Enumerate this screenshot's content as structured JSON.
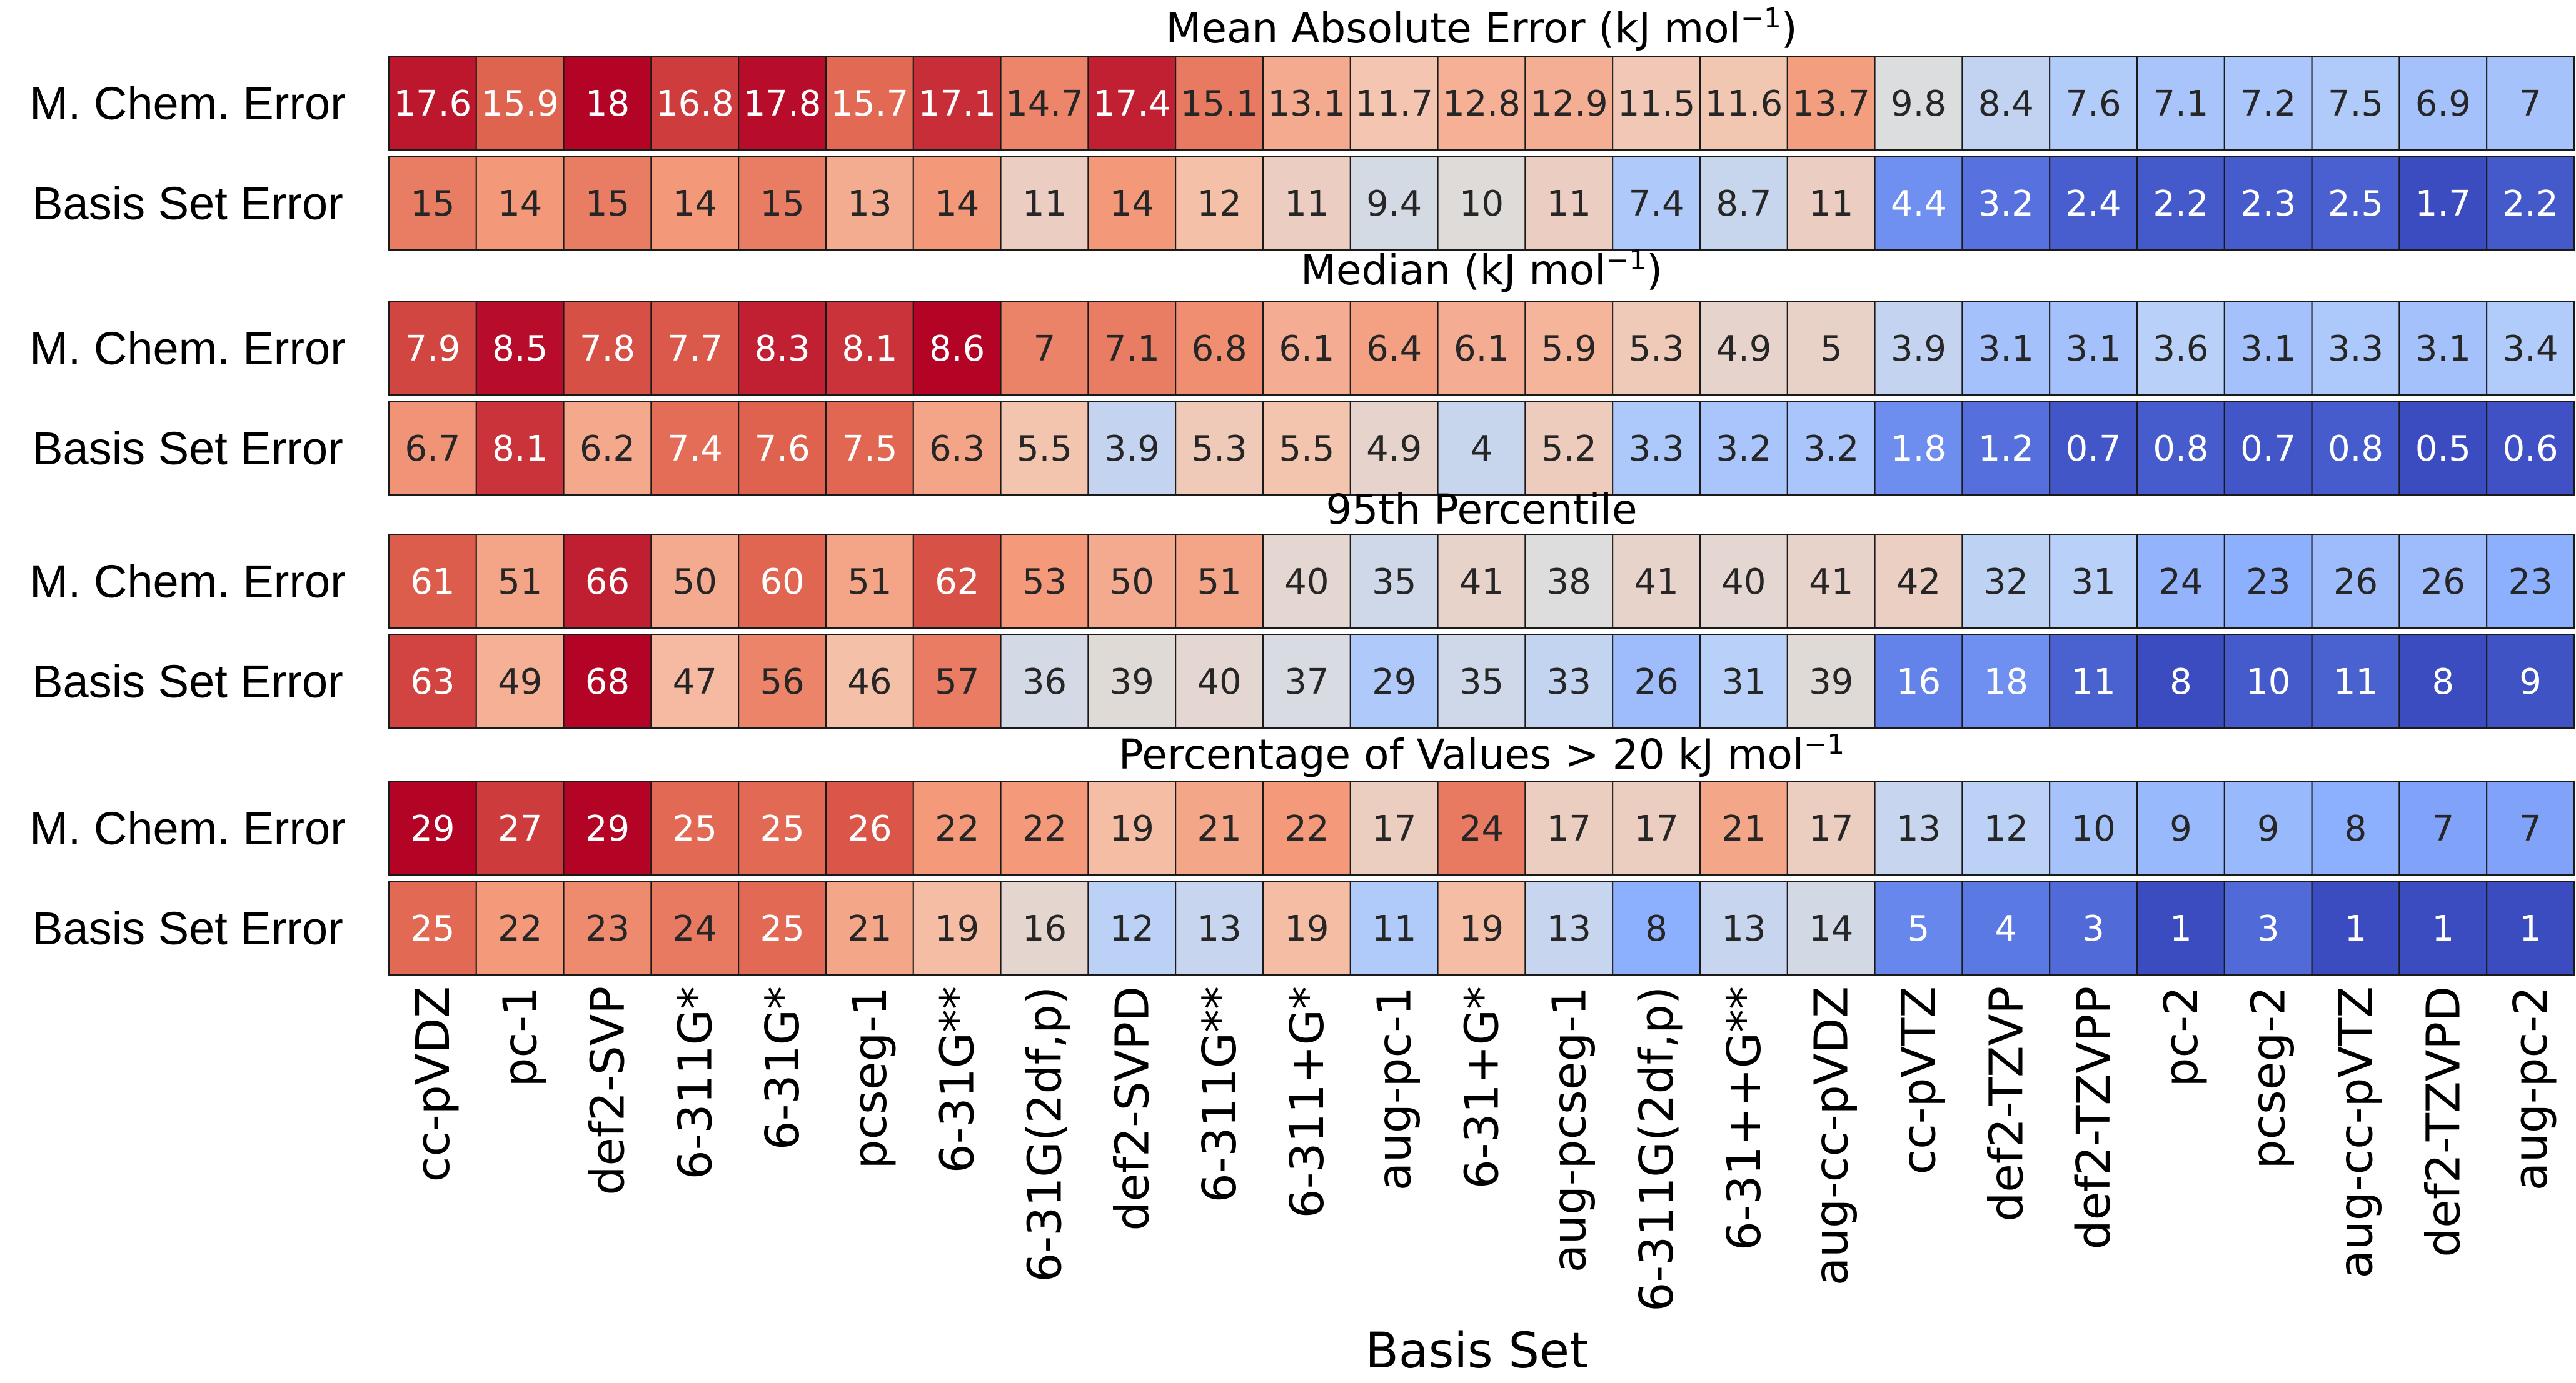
{
  "chart_data": {
    "type": "heatmap",
    "xlabel": "Basis Set",
    "colormap": "coolwarm",
    "categories": [
      "cc-pVDZ",
      "pc-1",
      "def2-SVP",
      "6-311G*",
      "6-31G*",
      "pcseg-1",
      "6-31G**",
      "6-31G(2df,p)",
      "def2-SVPD",
      "6-311G**",
      "6-311+G*",
      "aug-pc-1",
      "6-31+G*",
      "aug-pcseg-1",
      "6-311G(2df,p)",
      "6-31++G**",
      "aug-cc-pVDZ",
      "cc-pVTZ",
      "def2-TZVP",
      "def2-TZVPP",
      "pc-2",
      "pcseg-2",
      "aug-cc-pVTZ",
      "def2-TZVPD",
      "aug-pc-2"
    ],
    "panels": [
      {
        "title": "Mean Absolute Error (kJ mol",
        "title_sup": "−1",
        "title_tail": ")",
        "rows": [
          {
            "label": "M. Chem. Error",
            "values": [
              "17.6",
              "15.9",
              "18",
              "16.8",
              "17.8",
              "15.7",
              "17.1",
              "14.7",
              "17.4",
              "15.1",
              "13.1",
              "11.7",
              "12.8",
              "12.9",
              "11.5",
              "11.6",
              "13.7",
              "9.8",
              "8.4",
              "7.6",
              "7.1",
              "7.2",
              "7.5",
              "6.9",
              "7"
            ]
          },
          {
            "label": "Basis Set Error",
            "values": [
              "15",
              "14",
              "15",
              "14",
              "15",
              "13",
              "14",
              "11",
              "14",
              "12",
              "11",
              "9.4",
              "10",
              "11",
              "7.4",
              "8.7",
              "11",
              "4.4",
              "3.2",
              "2.4",
              "2.2",
              "2.3",
              "2.5",
              "1.7",
              "2.2"
            ]
          }
        ]
      },
      {
        "title": "Median (kJ mol",
        "title_sup": "−1",
        "title_tail": ")",
        "rows": [
          {
            "label": "M. Chem. Error",
            "values": [
              "7.9",
              "8.5",
              "7.8",
              "7.7",
              "8.3",
              "8.1",
              "8.6",
              "7",
              "7.1",
              "6.8",
              "6.1",
              "6.4",
              "6.1",
              "5.9",
              "5.3",
              "4.9",
              "5",
              "3.9",
              "3.1",
              "3.1",
              "3.6",
              "3.1",
              "3.3",
              "3.1",
              "3.4"
            ]
          },
          {
            "label": "Basis Set Error",
            "values": [
              "6.7",
              "8.1",
              "6.2",
              "7.4",
              "7.6",
              "7.5",
              "6.3",
              "5.5",
              "3.9",
              "5.3",
              "5.5",
              "4.9",
              "4",
              "5.2",
              "3.3",
              "3.2",
              "3.2",
              "1.8",
              "1.2",
              "0.7",
              "0.8",
              "0.7",
              "0.8",
              "0.5",
              "0.6"
            ]
          }
        ]
      },
      {
        "title": "95th Percentile",
        "title_sup": "",
        "title_tail": "",
        "rows": [
          {
            "label": "M. Chem. Error",
            "values": [
              "61",
              "51",
              "66",
              "50",
              "60",
              "51",
              "62",
              "53",
              "50",
              "51",
              "40",
              "35",
              "41",
              "38",
              "41",
              "40",
              "41",
              "42",
              "32",
              "31",
              "24",
              "23",
              "26",
              "26",
              "23"
            ]
          },
          {
            "label": "Basis Set Error",
            "values": [
              "63",
              "49",
              "68",
              "47",
              "56",
              "46",
              "57",
              "36",
              "39",
              "40",
              "37",
              "29",
              "35",
              "33",
              "26",
              "31",
              "39",
              "16",
              "18",
              "11",
              "8",
              "10",
              "11",
              "8",
              "9"
            ]
          }
        ]
      },
      {
        "title": "Percentage of Values > 20 kJ mol",
        "title_sup": "−1",
        "title_tail": "",
        "rows": [
          {
            "label": "M. Chem. Error",
            "values": [
              "29",
              "27",
              "29",
              "25",
              "25",
              "26",
              "22",
              "22",
              "19",
              "21",
              "22",
              "17",
              "24",
              "17",
              "17",
              "21",
              "17",
              "13",
              "12",
              "10",
              "9",
              "9",
              "8",
              "7",
              "7"
            ]
          },
          {
            "label": "Basis Set Error",
            "values": [
              "25",
              "22",
              "23",
              "24",
              "25",
              "21",
              "19",
              "16",
              "12",
              "13",
              "19",
              "11",
              "19",
              "13",
              "8",
              "13",
              "14",
              "5",
              "4",
              "3",
              "1",
              "3",
              "1",
              "1",
              "1"
            ]
          }
        ]
      }
    ]
  }
}
